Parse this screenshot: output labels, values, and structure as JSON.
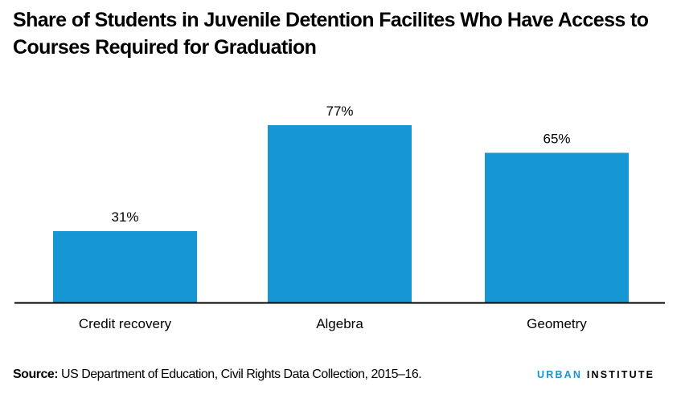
{
  "title": "Share of Students in Juvenile Detention Facilites Who Have Access to Courses Required for Graduation",
  "source_label": "Source:",
  "source_text": "US Department of Education, Civil Rights Data Collection, 2015–16.",
  "logo": {
    "part1": "URBAN",
    "part2": "INSTITUTE"
  },
  "colors": {
    "bar": "#1696d2",
    "axis": "#000000",
    "brand": "#1696d2"
  },
  "chart_data": {
    "type": "bar",
    "title": "Share of Students in Juvenile Detention Facilites Who Have Access to Courses Required for Graduation",
    "categories": [
      "Credit recovery",
      "Algebra",
      "Geometry"
    ],
    "values": [
      31,
      77,
      65
    ],
    "value_labels": [
      "31%",
      "77%",
      "65%"
    ],
    "xlabel": "",
    "ylabel": "",
    "ylim": [
      0,
      77
    ],
    "grid": false,
    "legend": "none"
  }
}
